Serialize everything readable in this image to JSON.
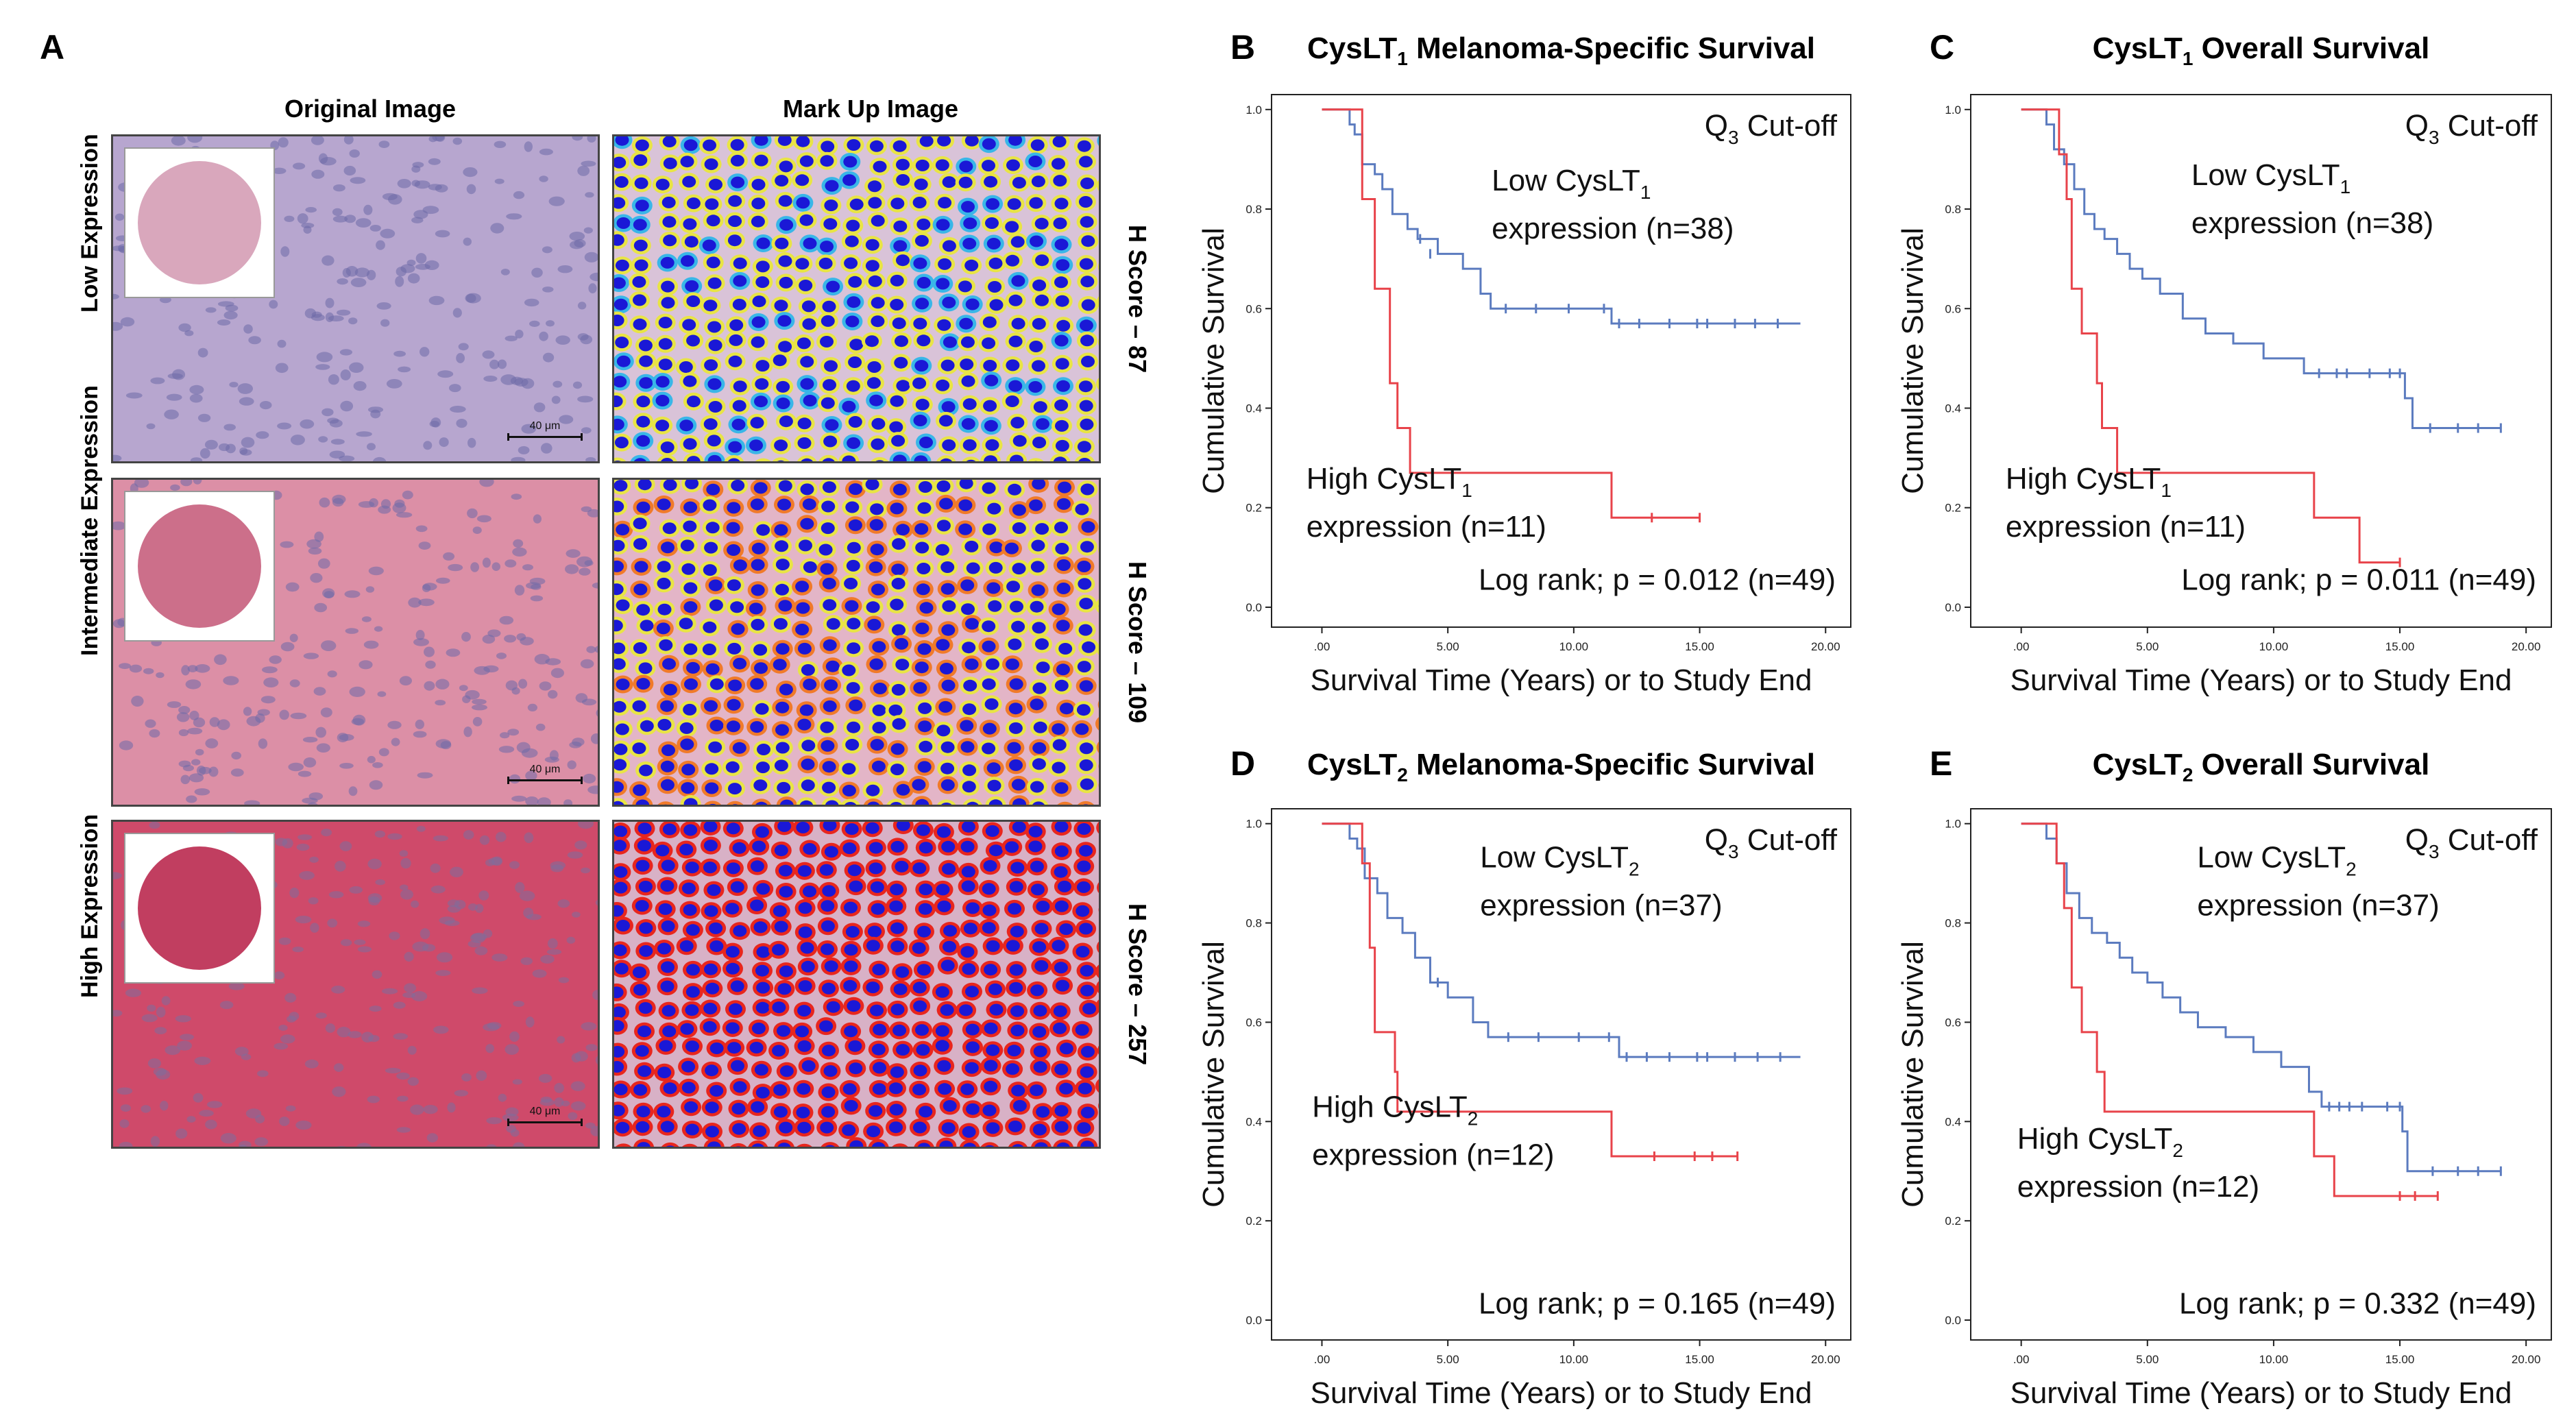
{
  "panel_a": {
    "letter": "A",
    "col_headers": [
      "Original Image",
      "Mark Up Image"
    ],
    "rows": [
      {
        "label": "Low Expression",
        "hscore": "H Score – 87",
        "scale": "40 μm",
        "tissue": "#b7a6cf",
        "disc": "#d9a7bc"
      },
      {
        "label": "Intermediate Expression",
        "hscore": "H Score – 109",
        "scale": "40 μm",
        "tissue": "#dc8fa6",
        "disc": "#cc6f8a"
      },
      {
        "label": "High Expression",
        "hscore": "H Score – 257",
        "scale": "40 μm",
        "tissue": "#cf4a6a",
        "disc": "#c13e60"
      }
    ]
  },
  "chart_data": [
    {
      "panel": "B",
      "type": "line",
      "title_prefix": "CysLT",
      "title_sub": "1",
      "title_suffix": " Melanoma-Specific Survival",
      "ylabel": "Cumulative Survival",
      "xlabel": "Survival Time (Years) or to Study End",
      "xlim": [
        -2,
        21
      ],
      "ylim": [
        -0.04,
        1.03
      ],
      "xticks": [
        0,
        5,
        10,
        15,
        20
      ],
      "xtick_labels": [
        ".00",
        "5.00",
        "10.00",
        "15.00",
        "20.00"
      ],
      "yticks": [
        0,
        0.2,
        0.4,
        0.6,
        0.8,
        1.0
      ],
      "ytick_labels": [
        "0.0",
        "0.2",
        "0.4",
        "0.6",
        "0.8",
        "1.0"
      ],
      "cutoff": {
        "main": "Q",
        "sub": "3",
        "rest": " Cut-off"
      },
      "logrank": "Log rank; p = 0.012 (n=49)",
      "series": [
        {
          "name_main": "Low CysLT",
          "name_sub": "1",
          "name_line2": "expression (n=38)",
          "color": "#5b7bbf",
          "steps": [
            [
              0,
              1.0
            ],
            [
              1.1,
              0.97
            ],
            [
              1.3,
              0.95
            ],
            [
              1.6,
              0.89
            ],
            [
              2.1,
              0.87
            ],
            [
              2.4,
              0.84
            ],
            [
              2.8,
              0.79
            ],
            [
              3.4,
              0.76
            ],
            [
              3.8,
              0.74
            ],
            [
              4.6,
              0.71
            ],
            [
              5.6,
              0.68
            ],
            [
              6.3,
              0.63
            ],
            [
              6.7,
              0.6
            ],
            [
              11.5,
              0.57
            ],
            [
              19.0,
              0.57
            ]
          ],
          "censors": [
            [
              3.9,
              0.74
            ],
            [
              4.3,
              0.71
            ],
            [
              7.3,
              0.6
            ],
            [
              8.5,
              0.6
            ],
            [
              9.8,
              0.6
            ],
            [
              11.2,
              0.6
            ],
            [
              11.8,
              0.57
            ],
            [
              12.6,
              0.57
            ],
            [
              13.8,
              0.57
            ],
            [
              14.9,
              0.57
            ],
            [
              15.3,
              0.57
            ],
            [
              16.4,
              0.57
            ],
            [
              17.2,
              0.57
            ],
            [
              18.1,
              0.57
            ]
          ]
        },
        {
          "name_main": "High CysLT",
          "name_sub": "1",
          "name_line2": "expression (n=11)",
          "color": "#e8434a",
          "steps": [
            [
              0,
              1.0
            ],
            [
              1.6,
              0.82
            ],
            [
              2.1,
              0.64
            ],
            [
              2.7,
              0.45
            ],
            [
              3.0,
              0.36
            ],
            [
              3.5,
              0.27
            ],
            [
              11.5,
              0.18
            ],
            [
              15.0,
              0.18
            ]
          ],
          "censors": [
            [
              13.1,
              0.18
            ],
            [
              15.0,
              0.18
            ]
          ]
        }
      ]
    },
    {
      "panel": "C",
      "type": "line",
      "title_prefix": "CysLT",
      "title_sub": "1",
      "title_suffix": " Overall Survival",
      "ylabel": "Cumulative Survival",
      "xlabel": "Survival Time (Years) or to Study End",
      "xlim": [
        -2,
        21
      ],
      "ylim": [
        -0.04,
        1.03
      ],
      "xticks": [
        0,
        5,
        10,
        15,
        20
      ],
      "xtick_labels": [
        ".00",
        "5.00",
        "10.00",
        "15.00",
        "20.00"
      ],
      "yticks": [
        0,
        0.2,
        0.4,
        0.6,
        0.8,
        1.0
      ],
      "ytick_labels": [
        "0.0",
        "0.2",
        "0.4",
        "0.6",
        "0.8",
        "1.0"
      ],
      "cutoff": {
        "main": "Q",
        "sub": "3",
        "rest": " Cut-off"
      },
      "logrank": "Log rank; p = 0.011 (n=49)",
      "series": [
        {
          "name_main": "Low CysLT",
          "name_sub": "1",
          "name_line2": "expression (n=38)",
          "color": "#5b7bbf",
          "steps": [
            [
              0,
              1.0
            ],
            [
              1.0,
              0.97
            ],
            [
              1.3,
              0.92
            ],
            [
              1.7,
              0.89
            ],
            [
              2.1,
              0.84
            ],
            [
              2.5,
              0.79
            ],
            [
              2.9,
              0.76
            ],
            [
              3.3,
              0.74
            ],
            [
              3.8,
              0.71
            ],
            [
              4.3,
              0.68
            ],
            [
              4.8,
              0.66
            ],
            [
              5.5,
              0.63
            ],
            [
              6.4,
              0.58
            ],
            [
              7.3,
              0.55
            ],
            [
              8.4,
              0.53
            ],
            [
              9.6,
              0.5
            ],
            [
              11.2,
              0.47
            ],
            [
              15.2,
              0.42
            ],
            [
              15.5,
              0.36
            ],
            [
              19.0,
              0.36
            ]
          ],
          "censors": [
            [
              11.8,
              0.47
            ],
            [
              12.5,
              0.47
            ],
            [
              12.9,
              0.47
            ],
            [
              13.8,
              0.47
            ],
            [
              14.6,
              0.47
            ],
            [
              15.0,
              0.47
            ],
            [
              16.2,
              0.36
            ],
            [
              17.3,
              0.36
            ],
            [
              18.1,
              0.36
            ],
            [
              19.0,
              0.36
            ]
          ]
        },
        {
          "name_main": "High CysLT",
          "name_sub": "1",
          "name_line2": "expression (n=11)",
          "color": "#e8434a",
          "steps": [
            [
              0,
              1.0
            ],
            [
              1.5,
              0.91
            ],
            [
              1.8,
              0.82
            ],
            [
              2.0,
              0.64
            ],
            [
              2.4,
              0.55
            ],
            [
              3.0,
              0.45
            ],
            [
              3.2,
              0.36
            ],
            [
              3.8,
              0.27
            ],
            [
              11.6,
              0.18
            ],
            [
              13.4,
              0.09
            ],
            [
              15.0,
              0.09
            ]
          ],
          "censors": [
            [
              15.0,
              0.09
            ]
          ]
        }
      ]
    },
    {
      "panel": "D",
      "type": "line",
      "title_prefix": "CysLT",
      "title_sub": "2",
      "title_suffix": " Melanoma-Specific Survival",
      "ylabel": "Cumulative Survival",
      "xlabel": "Survival Time (Years) or to Study End",
      "xlim": [
        -2,
        21
      ],
      "ylim": [
        -0.04,
        1.03
      ],
      "xticks": [
        0,
        5,
        10,
        15,
        20
      ],
      "xtick_labels": [
        ".00",
        "5.00",
        "10.00",
        "15.00",
        "20.00"
      ],
      "yticks": [
        0,
        0.2,
        0.4,
        0.6,
        0.8,
        1.0
      ],
      "ytick_labels": [
        "0.0",
        "0.2",
        "0.4",
        "0.6",
        "0.8",
        "1.0"
      ],
      "cutoff": {
        "main": "Q",
        "sub": "3",
        "rest": " Cut-off"
      },
      "logrank": "Log rank; p = 0.165 (n=49)",
      "series": [
        {
          "name_main": "Low CysLT",
          "name_sub": "2",
          "name_line2": "expression (n=37)",
          "color": "#5b7bbf",
          "steps": [
            [
              0,
              1.0
            ],
            [
              1.1,
              0.97
            ],
            [
              1.4,
              0.95
            ],
            [
              1.7,
              0.89
            ],
            [
              2.2,
              0.86
            ],
            [
              2.6,
              0.81
            ],
            [
              3.2,
              0.78
            ],
            [
              3.7,
              0.73
            ],
            [
              4.3,
              0.68
            ],
            [
              5.0,
              0.65
            ],
            [
              6.0,
              0.6
            ],
            [
              6.6,
              0.57
            ],
            [
              11.8,
              0.53
            ],
            [
              19.0,
              0.53
            ]
          ],
          "censors": [
            [
              4.6,
              0.68
            ],
            [
              7.4,
              0.57
            ],
            [
              8.6,
              0.57
            ],
            [
              10.2,
              0.57
            ],
            [
              11.4,
              0.57
            ],
            [
              12.1,
              0.53
            ],
            [
              12.9,
              0.53
            ],
            [
              13.8,
              0.53
            ],
            [
              14.9,
              0.53
            ],
            [
              15.3,
              0.53
            ],
            [
              16.4,
              0.53
            ],
            [
              17.3,
              0.53
            ],
            [
              18.2,
              0.53
            ]
          ]
        },
        {
          "name_main": "High CysLT",
          "name_sub": "2",
          "name_line2": "expression (n=12)",
          "color": "#e8434a",
          "steps": [
            [
              0,
              1.0
            ],
            [
              1.6,
              0.92
            ],
            [
              1.9,
              0.75
            ],
            [
              2.1,
              0.58
            ],
            [
              2.9,
              0.5
            ],
            [
              3.0,
              0.42
            ],
            [
              11.5,
              0.33
            ],
            [
              16.5,
              0.33
            ]
          ],
          "censors": [
            [
              13.2,
              0.33
            ],
            [
              14.8,
              0.33
            ],
            [
              15.5,
              0.33
            ],
            [
              16.5,
              0.33
            ]
          ]
        }
      ]
    },
    {
      "panel": "E",
      "type": "line",
      "title_prefix": "CysLT",
      "title_sub": "2",
      "title_suffix": " Overall Survival",
      "ylabel": "Cumulative Survival",
      "xlabel": "Survival Time (Years) or to Study End",
      "xlim": [
        -2,
        21
      ],
      "ylim": [
        -0.04,
        1.03
      ],
      "xticks": [
        0,
        5,
        10,
        15,
        20
      ],
      "xtick_labels": [
        ".00",
        "5.00",
        "10.00",
        "15.00",
        "20.00"
      ],
      "yticks": [
        0,
        0.2,
        0.4,
        0.6,
        0.8,
        1.0
      ],
      "ytick_labels": [
        "0.0",
        "0.2",
        "0.4",
        "0.6",
        "0.8",
        "1.0"
      ],
      "cutoff": {
        "main": "Q",
        "sub": "3",
        "rest": " Cut-off"
      },
      "logrank": "Log rank; p = 0.332 (n=49)",
      "series": [
        {
          "name_main": "Low CysLT",
          "name_sub": "2",
          "name_line2": "expression (n=37)",
          "color": "#5b7bbf",
          "steps": [
            [
              0,
              1.0
            ],
            [
              1.0,
              0.97
            ],
            [
              1.4,
              0.92
            ],
            [
              1.8,
              0.86
            ],
            [
              2.3,
              0.81
            ],
            [
              2.8,
              0.78
            ],
            [
              3.4,
              0.76
            ],
            [
              3.9,
              0.73
            ],
            [
              4.4,
              0.7
            ],
            [
              5.0,
              0.68
            ],
            [
              5.6,
              0.65
            ],
            [
              6.3,
              0.62
            ],
            [
              7.0,
              0.59
            ],
            [
              8.1,
              0.57
            ],
            [
              9.2,
              0.54
            ],
            [
              10.3,
              0.51
            ],
            [
              11.4,
              0.46
            ],
            [
              11.9,
              0.43
            ],
            [
              15.1,
              0.38
            ],
            [
              15.3,
              0.3
            ],
            [
              19.0,
              0.3
            ]
          ],
          "censors": [
            [
              12.2,
              0.43
            ],
            [
              12.6,
              0.43
            ],
            [
              13.0,
              0.43
            ],
            [
              13.5,
              0.43
            ],
            [
              14.5,
              0.43
            ],
            [
              15.0,
              0.43
            ],
            [
              16.3,
              0.3
            ],
            [
              17.3,
              0.3
            ],
            [
              18.1,
              0.3
            ],
            [
              19.0,
              0.3
            ]
          ]
        },
        {
          "name_main": "High CysLT",
          "name_sub": "2",
          "name_line2": "expression (n=12)",
          "color": "#e8434a",
          "steps": [
            [
              0,
              1.0
            ],
            [
              1.4,
              0.92
            ],
            [
              1.7,
              0.83
            ],
            [
              2.0,
              0.67
            ],
            [
              2.4,
              0.58
            ],
            [
              3.0,
              0.5
            ],
            [
              3.3,
              0.42
            ],
            [
              11.6,
              0.33
            ],
            [
              12.4,
              0.25
            ],
            [
              16.5,
              0.25
            ]
          ],
          "censors": [
            [
              15.0,
              0.25
            ],
            [
              15.6,
              0.25
            ],
            [
              16.5,
              0.25
            ]
          ]
        }
      ]
    }
  ]
}
